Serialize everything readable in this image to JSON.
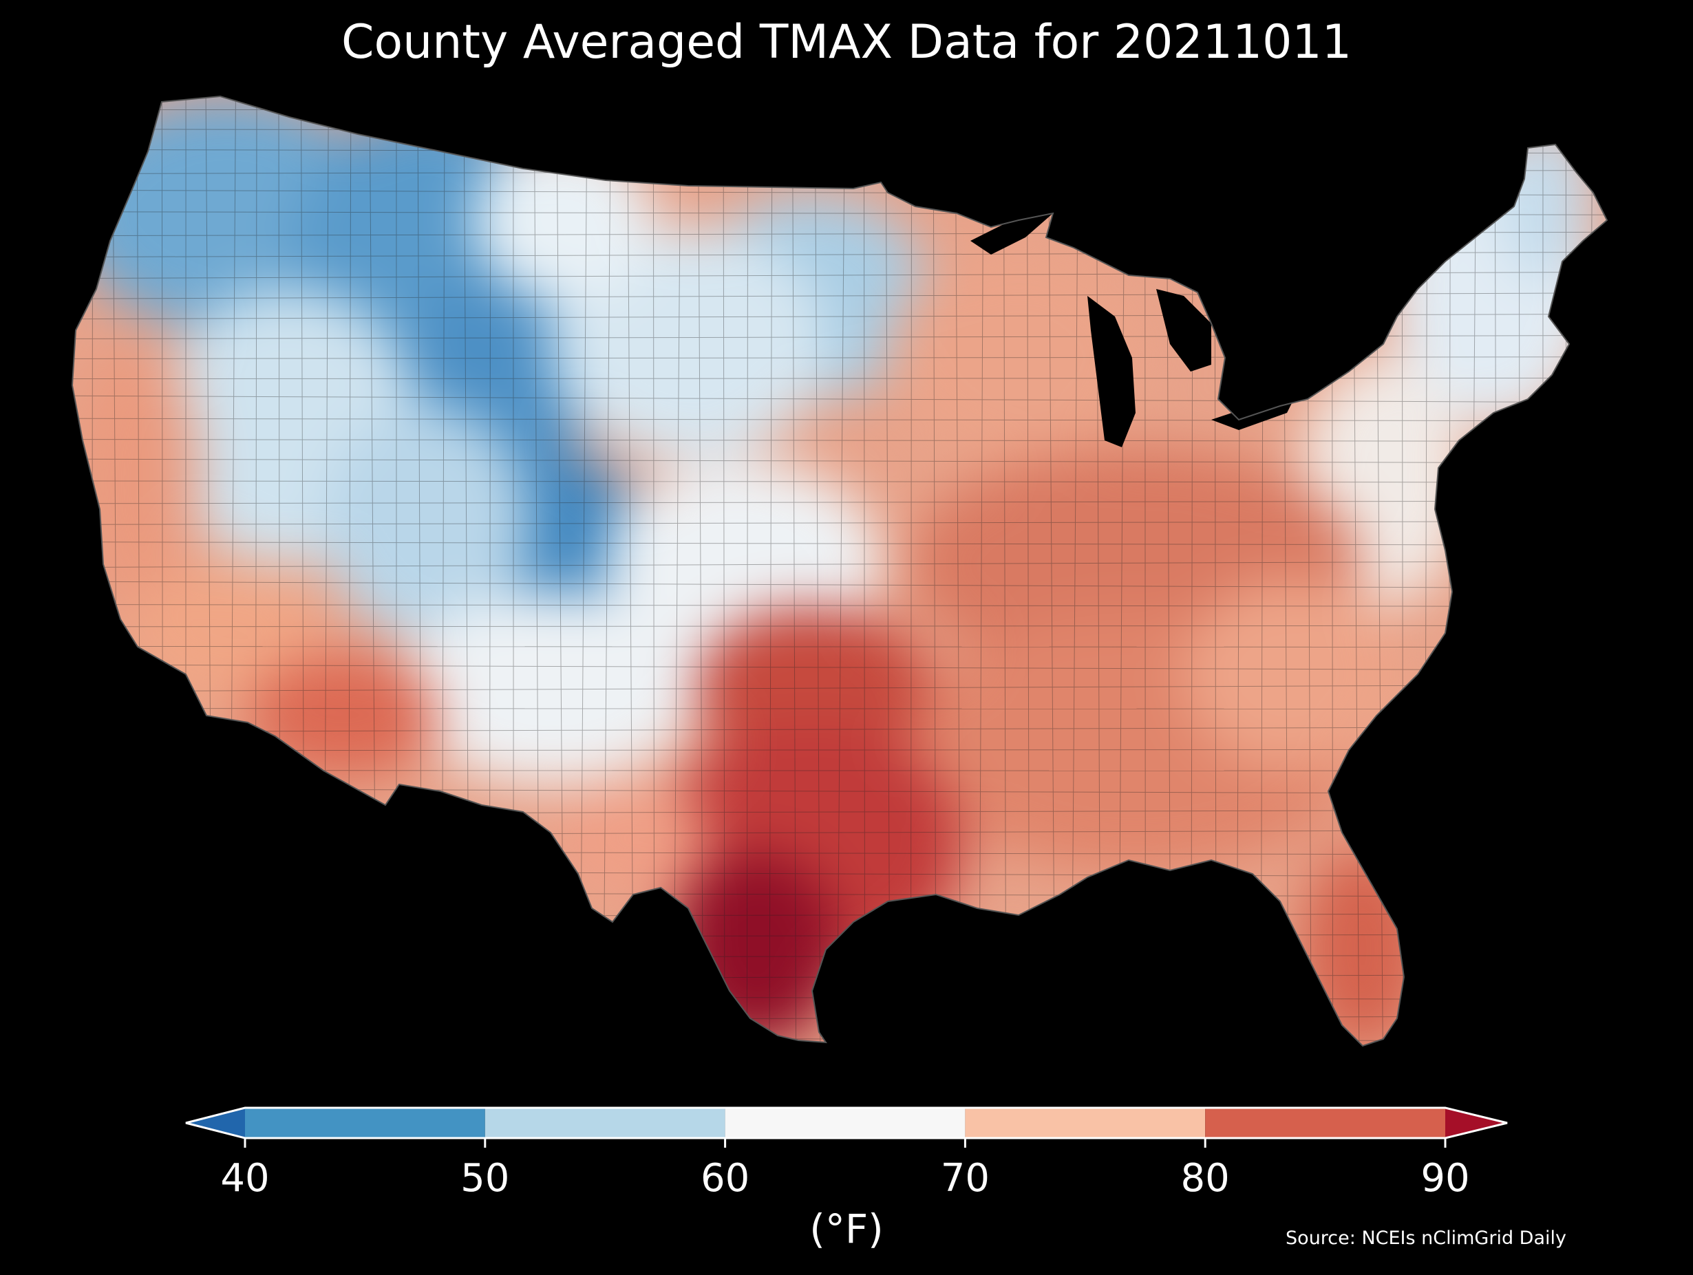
{
  "title": "County Averaged TMAX Data for 20211011",
  "source": "Source: NCEIs nClimGrid Daily",
  "colorbar": {
    "label": "(°F)",
    "ticks": [
      "40",
      "50",
      "60",
      "70",
      "80",
      "90"
    ],
    "bins": [
      {
        "range": "<40",
        "color": "#2166ac"
      },
      {
        "range": "40-50",
        "color": "#4393c3"
      },
      {
        "range": "50-60",
        "color": "#b6d7e8"
      },
      {
        "range": "60-70",
        "color": "#f7f7f7"
      },
      {
        "range": "70-80",
        "color": "#f9c2a6"
      },
      {
        "range": "80-90",
        "color": "#d6604d"
      },
      {
        "range": ">90",
        "color": "#a50f28"
      }
    ]
  },
  "map": {
    "region": "Contiguous United States",
    "variable": "TMAX",
    "date": "20211011",
    "unit": "°F",
    "background": "#000000"
  }
}
